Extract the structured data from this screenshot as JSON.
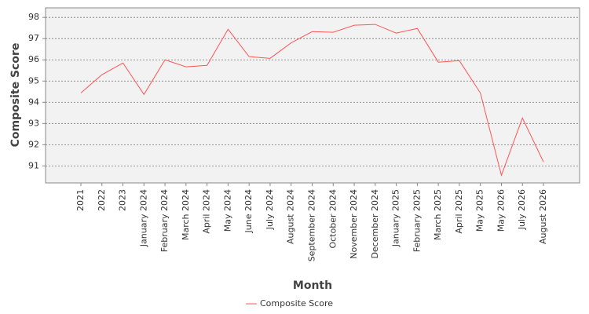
{
  "chart_data": {
    "type": "line",
    "x_label": "Month",
    "y_label": "Composite Score",
    "categories": [
      "2021",
      "2022",
      "2023",
      "January 2024",
      "February 2024",
      "March 2024",
      "April 2024",
      "May 2024",
      "June 2024",
      "July 2024",
      "August 2024",
      "September 2024",
      "October 2024",
      "November 2024",
      "December 2024",
      "January 2025",
      "February 2025",
      "March 2025",
      "April 2025",
      "May 2025",
      "May 2026",
      "July 2026",
      "August 2026"
    ],
    "series": [
      {
        "name": "Composite Score",
        "color": "#ff5555",
        "values": [
          94.44,
          95.3,
          95.85,
          94.37,
          96.0,
          95.67,
          95.74,
          97.44,
          96.15,
          96.07,
          96.8,
          97.33,
          97.3,
          97.63,
          97.67,
          97.26,
          97.48,
          95.89,
          95.96,
          94.44,
          90.56,
          93.26,
          91.19
        ]
      }
    ],
    "ylim": [
      90.2,
      98.45
    ],
    "yticks": [
      91,
      92,
      93,
      94,
      95,
      96,
      97,
      98
    ],
    "grid": true
  }
}
